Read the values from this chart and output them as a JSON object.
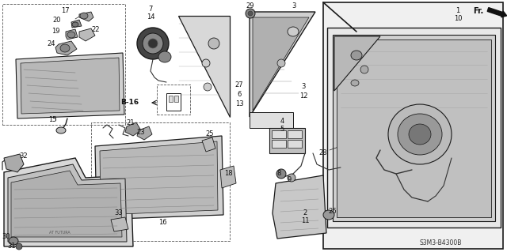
{
  "background_color": "#ffffff",
  "diagram_code": "S3M3-B4300B",
  "fr_label": "FR.",
  "line_color": "#1a1a1a",
  "gray_fill": "#c8c8c8",
  "light_gray": "#e8e8e8",
  "mid_gray": "#aaaaaa"
}
